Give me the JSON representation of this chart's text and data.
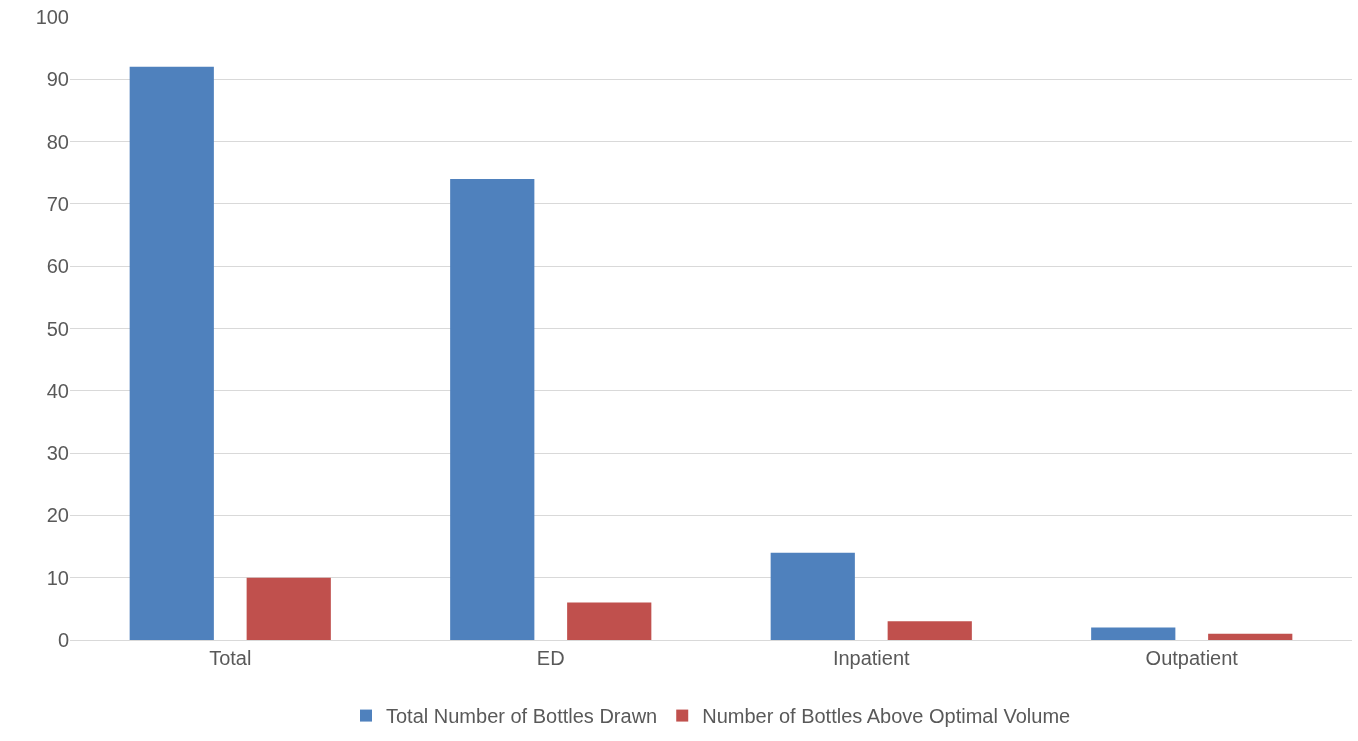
{
  "chart_data": {
    "type": "bar",
    "categories": [
      "Total",
      "ED",
      "Inpatient",
      "Outpatient"
    ],
    "series": [
      {
        "name": "Total Number of Bottles Drawn",
        "color": "#4f81bd",
        "values": [
          92,
          74,
          14,
          2
        ]
      },
      {
        "name": "Number of Bottles Above Optimal Volume",
        "color": "#c0504d",
        "values": [
          10,
          6,
          3,
          1
        ]
      }
    ],
    "ylim": [
      0,
      100
    ],
    "yticks": [
      0,
      10,
      20,
      30,
      40,
      50,
      60,
      70,
      80,
      90,
      100
    ],
    "grid": "y",
    "legend": "bottom"
  }
}
